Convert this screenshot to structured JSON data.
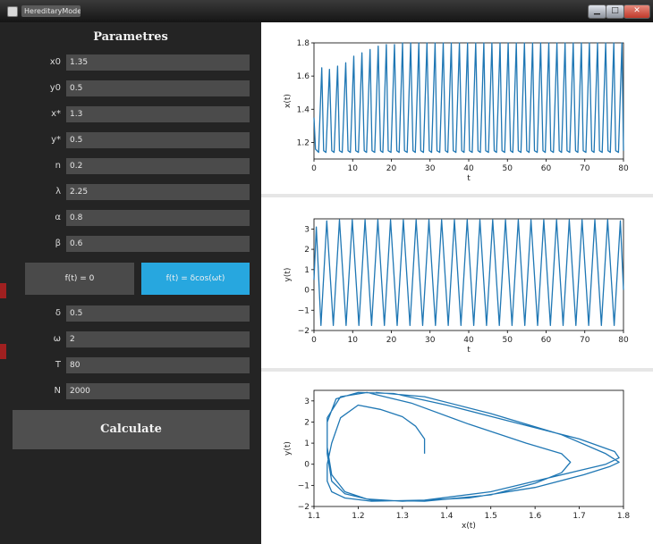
{
  "window": {
    "title": "HereditaryModel",
    "minimize": "▁",
    "maximize": "□",
    "close": "✕"
  },
  "panel": {
    "title": "Parametres",
    "params": [
      {
        "label": "x0",
        "value": "1.35"
      },
      {
        "label": "y0",
        "value": "0.5"
      },
      {
        "label": "x*",
        "value": "1.3"
      },
      {
        "label": "y*",
        "value": "0.5"
      },
      {
        "label": "n",
        "value": "0.2"
      },
      {
        "label": "λ",
        "value": "2.25"
      },
      {
        "label": "α",
        "value": "0.8"
      },
      {
        "label": "β",
        "value": "0.6"
      }
    ],
    "forcing_buttons": [
      {
        "label": "f(t) = 0",
        "active": false
      },
      {
        "label": "f(t) = δcos(ωt)",
        "active": true
      }
    ],
    "forcing_params": [
      {
        "label": "δ",
        "value": "0.5"
      },
      {
        "label": "ω",
        "value": "2"
      },
      {
        "label": "T",
        "value": "80"
      },
      {
        "label": "N",
        "value": "2000"
      }
    ],
    "calculate_label": "Calculate",
    "colors": {
      "panel_bg": "#242424",
      "input_bg": "#4b4b4b",
      "active_button": "#27a7df",
      "line": "#1f77b4"
    }
  },
  "chart_data": [
    {
      "type": "line",
      "title": "",
      "xlabel": "t",
      "ylabel": "x(t)",
      "xlim": [
        0,
        80
      ],
      "ylim": [
        1.1,
        1.8
      ],
      "xticks": [
        0,
        10,
        20,
        30,
        40,
        50,
        60,
        70,
        80
      ],
      "yticks": [
        1.2,
        1.4,
        1.6,
        1.8
      ],
      "grid": false,
      "series": [
        {
          "x": [
            0,
            0.4,
            1.2,
            2.0,
            2.5,
            3.1,
            4.0,
            4.6,
            5.2,
            6.1,
            6.6,
            7.3,
            8.2,
            8.8,
            9.4,
            10.3,
            10.8,
            11.5,
            12.4,
            13.0,
            13.6,
            14.5,
            15.0,
            15.7,
            16.6,
            17.2,
            17.8,
            18.7,
            19.2,
            19.9,
            20.8,
            21.4,
            22.0,
            22.9,
            23.4,
            24.1,
            25.0,
            25.6,
            26.2,
            27.1,
            27.6,
            28.3,
            29.2,
            29.8,
            30.4,
            31.3,
            31.8,
            32.5,
            33.4,
            34.0,
            34.6,
            35.5,
            36.0,
            36.7,
            37.6,
            38.2,
            38.8,
            39.7,
            40.2,
            40.9,
            41.8,
            42.4,
            43.0,
            43.9,
            44.4,
            45.1,
            46.0,
            46.6,
            47.2,
            48.1,
            48.6,
            49.3,
            50.2,
            50.8,
            51.4,
            52.3,
            52.8,
            53.5,
            54.4,
            55.0,
            55.6,
            56.5,
            57.0,
            57.7,
            58.6,
            59.2,
            59.8,
            60.7,
            61.2,
            61.9,
            62.8,
            63.4,
            64.0,
            64.9,
            65.4,
            66.1,
            67.0,
            67.6,
            68.2,
            69.1,
            69.6,
            70.3,
            71.2,
            71.8,
            72.4,
            73.3,
            73.8,
            74.5,
            75.4,
            76.0,
            76.6,
            77.5,
            78.0,
            78.7,
            79.6,
            80
          ],
          "y": [
            1.35,
            1.16,
            1.14,
            1.65,
            1.15,
            1.14,
            1.64,
            1.15,
            1.14,
            1.66,
            1.15,
            1.14,
            1.68,
            1.15,
            1.14,
            1.72,
            1.15,
            1.14,
            1.74,
            1.15,
            1.14,
            1.76,
            1.15,
            1.14,
            1.78,
            1.15,
            1.14,
            1.79,
            1.15,
            1.14,
            1.79,
            1.15,
            1.14,
            1.8,
            1.15,
            1.14,
            1.8,
            1.15,
            1.14,
            1.8,
            1.15,
            1.14,
            1.8,
            1.15,
            1.14,
            1.8,
            1.15,
            1.14,
            1.8,
            1.15,
            1.14,
            1.8,
            1.15,
            1.14,
            1.8,
            1.15,
            1.14,
            1.8,
            1.15,
            1.14,
            1.8,
            1.15,
            1.14,
            1.8,
            1.15,
            1.14,
            1.8,
            1.15,
            1.14,
            1.8,
            1.15,
            1.14,
            1.8,
            1.15,
            1.14,
            1.8,
            1.15,
            1.14,
            1.8,
            1.15,
            1.14,
            1.8,
            1.15,
            1.14,
            1.8,
            1.15,
            1.14,
            1.8,
            1.15,
            1.14,
            1.8,
            1.15,
            1.14,
            1.8,
            1.15,
            1.14,
            1.8,
            1.15,
            1.14,
            1.8,
            1.15,
            1.14,
            1.8,
            1.15,
            1.14,
            1.8,
            1.15,
            1.14,
            1.8,
            1.15,
            1.14,
            1.8,
            1.15,
            1.14,
            1.8,
            1.15
          ]
        }
      ]
    },
    {
      "type": "line",
      "title": "",
      "xlabel": "t",
      "ylabel": "y(t)",
      "xlim": [
        0,
        80
      ],
      "ylim": [
        -2,
        3.5
      ],
      "xticks": [
        0,
        10,
        20,
        30,
        40,
        50,
        60,
        70,
        80
      ],
      "yticks": [
        -2,
        -1,
        0,
        1,
        2,
        3
      ],
      "grid": false,
      "series": [
        {
          "x": [
            0,
            0.6,
            1.8,
            3.3,
            5.0,
            6.6,
            8.3,
            9.9,
            11.6,
            13.2,
            14.9,
            16.5,
            18.2,
            19.8,
            21.5,
            23.1,
            24.8,
            26.4,
            28.1,
            29.7,
            31.4,
            33.0,
            34.7,
            36.3,
            38.0,
            39.6,
            41.3,
            42.9,
            44.6,
            46.2,
            47.9,
            49.5,
            51.2,
            52.8,
            54.5,
            56.1,
            57.8,
            59.4,
            61.1,
            62.7,
            64.4,
            66.0,
            67.7,
            69.3,
            71.0,
            72.6,
            74.3,
            75.9,
            77.6,
            79.2,
            80
          ],
          "y": [
            0.5,
            3.1,
            -1.75,
            3.4,
            -1.75,
            3.45,
            -1.75,
            3.45,
            -1.75,
            3.45,
            -1.75,
            3.45,
            -1.75,
            3.45,
            -1.75,
            3.45,
            -1.75,
            3.45,
            -1.75,
            3.45,
            -1.75,
            3.45,
            -1.75,
            3.45,
            -1.75,
            3.45,
            -1.75,
            3.45,
            -1.75,
            3.45,
            -1.75,
            3.45,
            -1.75,
            3.45,
            -1.75,
            3.45,
            -1.75,
            3.45,
            -1.75,
            3.45,
            -1.75,
            3.45,
            -1.75,
            3.45,
            -1.75,
            3.45,
            -1.75,
            3.45,
            -1.75,
            3.4,
            0.0
          ]
        }
      ]
    },
    {
      "type": "line",
      "title": "",
      "xlabel": "x(t)",
      "ylabel": "y(t)",
      "xlim": [
        1.1,
        1.8
      ],
      "ylim": [
        -2,
        3.5
      ],
      "xticks": [
        1.1,
        1.2,
        1.3,
        1.4,
        1.5,
        1.6,
        1.7,
        1.8
      ],
      "yticks": [
        -2,
        -1,
        0,
        1,
        2,
        3
      ],
      "grid": false,
      "series": [
        {
          "x": [
            1.35,
            1.35,
            1.33,
            1.3,
            1.25,
            1.2,
            1.16,
            1.14,
            1.13,
            1.13,
            1.14,
            1.17,
            1.23,
            1.35,
            1.5,
            1.62,
            1.7,
            1.76,
            1.79,
            1.78,
            1.7,
            1.55,
            1.4,
            1.28,
            1.2,
            1.15,
            1.13,
            1.13,
            1.14,
            1.17,
            1.23,
            1.35,
            1.5,
            1.6,
            1.66,
            1.68,
            1.66,
            1.58,
            1.45,
            1.32,
            1.22,
            1.16,
            1.13,
            1.13,
            1.14,
            1.17,
            1.22,
            1.3,
            1.45,
            1.6,
            1.71,
            1.77,
            1.79,
            1.76,
            1.66,
            1.5,
            1.35,
            1.24
          ],
          "y": [
            0.5,
            1.2,
            1.8,
            2.25,
            2.6,
            2.8,
            2.2,
            1.0,
            0.0,
            -0.8,
            -1.3,
            -1.6,
            -1.75,
            -1.7,
            -1.3,
            -0.7,
            -0.3,
            0.0,
            0.3,
            0.6,
            1.2,
            2.0,
            2.8,
            3.35,
            3.4,
            3.1,
            2.0,
            0.5,
            -0.8,
            -1.4,
            -1.7,
            -1.75,
            -1.45,
            -0.9,
            -0.4,
            0.1,
            0.5,
            1.0,
            1.9,
            2.9,
            3.4,
            3.2,
            2.2,
            0.8,
            -0.5,
            -1.3,
            -1.65,
            -1.75,
            -1.6,
            -1.1,
            -0.5,
            -0.1,
            0.1,
            0.5,
            1.4,
            2.4,
            3.2,
            3.4
          ]
        }
      ]
    }
  ]
}
